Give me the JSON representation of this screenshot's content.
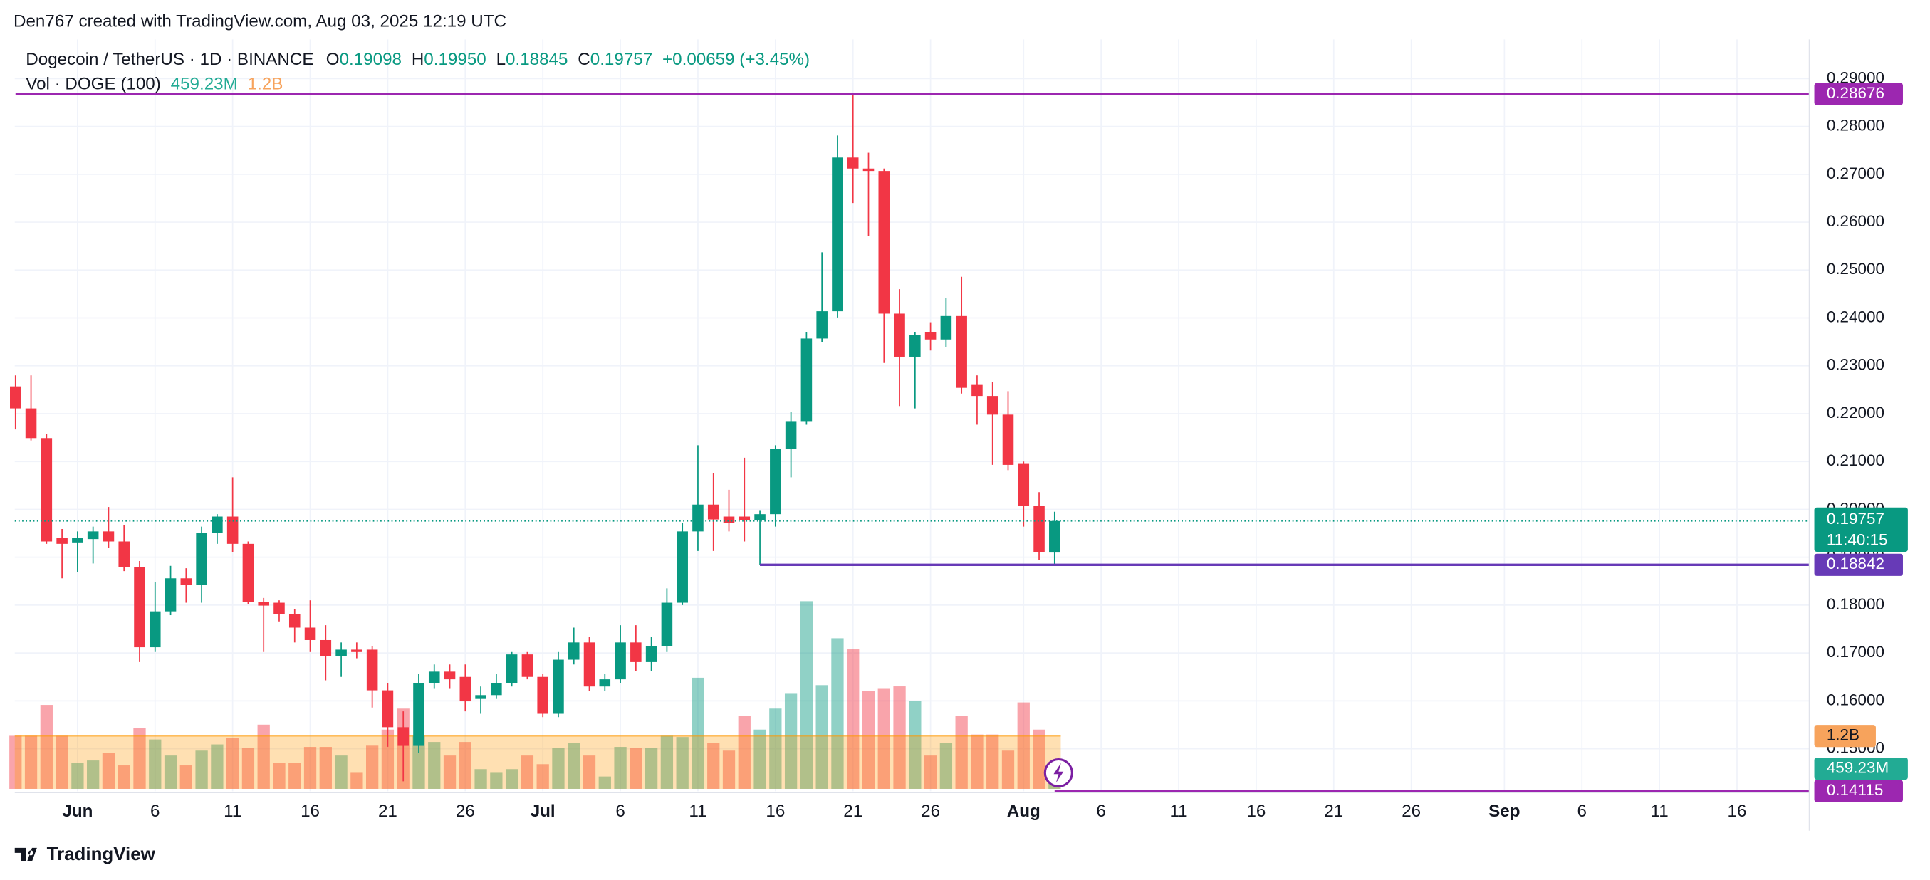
{
  "header": {
    "credit": "Den767 created with TradingView.com, Aug 03, 2025 12:19 UTC",
    "symbol": "Dogecoin / TetherUS · 1D · BINANCE",
    "ohlc": [
      {
        "key": "O",
        "value": "0.19098"
      },
      {
        "key": "H",
        "value": "0.19950"
      },
      {
        "key": "L",
        "value": "0.18845"
      },
      {
        "key": "C",
        "value": "0.19757"
      }
    ],
    "change": "+0.00659 (+3.45%)",
    "volume_legend": "Vol · DOGE (100)"
  },
  "chart_data": {
    "type": "candlestick",
    "x": [
      "2025-05-28",
      "2025-05-29",
      "2025-05-30",
      "2025-05-31",
      "2025-06-01",
      "2025-06-02",
      "2025-06-03",
      "2025-06-04",
      "2025-06-05",
      "2025-06-06",
      "2025-06-07",
      "2025-06-08",
      "2025-06-09",
      "2025-06-10",
      "2025-06-11",
      "2025-06-12",
      "2025-06-13",
      "2025-06-14",
      "2025-06-15",
      "2025-06-16",
      "2025-06-17",
      "2025-06-18",
      "2025-06-19",
      "2025-06-20",
      "2025-06-21",
      "2025-06-22",
      "2025-06-23",
      "2025-06-24",
      "2025-06-25",
      "2025-06-26",
      "2025-06-27",
      "2025-06-28",
      "2025-06-29",
      "2025-06-30",
      "2025-07-01",
      "2025-07-02",
      "2025-07-03",
      "2025-07-04",
      "2025-07-05",
      "2025-07-06",
      "2025-07-07",
      "2025-07-08",
      "2025-07-09",
      "2025-07-10",
      "2025-07-11",
      "2025-07-12",
      "2025-07-13",
      "2025-07-14",
      "2025-07-15",
      "2025-07-16",
      "2025-07-17",
      "2025-07-18",
      "2025-07-19",
      "2025-07-20",
      "2025-07-21",
      "2025-07-22",
      "2025-07-23",
      "2025-07-24",
      "2025-07-25",
      "2025-07-26",
      "2025-07-27",
      "2025-07-28",
      "2025-07-29",
      "2025-07-30",
      "2025-07-31",
      "2025-08-01",
      "2025-08-02",
      "2025-08-03"
    ],
    "open": [
      0.2257,
      0.2211,
      0.2149,
      0.1941,
      0.1931,
      0.1938,
      0.1954,
      0.1933,
      0.1879,
      0.1712,
      0.1787,
      0.1856,
      0.1843,
      0.1951,
      0.1985,
      0.1928,
      0.1807,
      0.1805,
      0.1781,
      0.1753,
      0.1727,
      0.1694,
      0.1707,
      0.1707,
      0.1622,
      0.1545,
      0.1506,
      0.1637,
      0.1661,
      0.165,
      0.1604,
      0.1612,
      0.1637,
      0.1697,
      0.165,
      0.1573,
      0.1686,
      0.1722,
      0.163,
      0.1645,
      0.1722,
      0.1681,
      0.1715,
      0.1805,
      0.1954,
      0.201,
      0.1985,
      0.1985,
      0.1977,
      0.199,
      0.2126,
      0.2183,
      0.2357,
      0.2414,
      0.2735,
      0.2712,
      0.2707,
      0.2409,
      0.2319,
      0.237,
      0.2355,
      0.2404,
      0.226,
      0.2237,
      0.2198,
      0.2095,
      0.2008,
      0.19098
    ],
    "high": [
      0.228,
      0.228,
      0.2157,
      0.1959,
      0.1954,
      0.1964,
      0.2005,
      0.1967,
      0.1892,
      0.1848,
      0.1882,
      0.1877,
      0.1964,
      0.199,
      0.2067,
      0.1933,
      0.1815,
      0.181,
      0.1792,
      0.181,
      0.1758,
      0.1722,
      0.1722,
      0.1715,
      0.1637,
      0.1578,
      0.1656,
      0.1676,
      0.1676,
      0.1676,
      0.163,
      0.1656,
      0.1702,
      0.1702,
      0.1656,
      0.1702,
      0.1753,
      0.1733,
      0.1656,
      0.1758,
      0.1758,
      0.1733,
      0.1835,
      0.1972,
      0.2134,
      0.2075,
      0.2041,
      0.2108,
      0.1997,
      0.2134,
      0.2203,
      0.237,
      0.2537,
      0.2781,
      0.28676,
      0.2745,
      0.2712,
      0.246,
      0.237,
      0.2391,
      0.2442,
      0.2486,
      0.228,
      0.2267,
      0.2247,
      0.21,
      0.2036,
      0.1995
    ],
    "low": [
      0.2167,
      0.2144,
      0.1928,
      0.1856,
      0.1869,
      0.1887,
      0.192,
      0.1871,
      0.1681,
      0.1702,
      0.1779,
      0.1805,
      0.1805,
      0.1928,
      0.191,
      0.1802,
      0.1702,
      0.1766,
      0.1722,
      0.1702,
      0.1643,
      0.165,
      0.1689,
      0.1586,
      0.1504,
      0.1432,
      0.1491,
      0.1625,
      0.1625,
      0.1578,
      0.1573,
      0.1604,
      0.163,
      0.1645,
      0.1566,
      0.1566,
      0.1676,
      0.162,
      0.162,
      0.1637,
      0.1663,
      0.1663,
      0.1702,
      0.18,
      0.1913,
      0.1913,
      0.1954,
      0.1933,
      0.18842,
      0.1964,
      0.2067,
      0.2177,
      0.235,
      0.2401,
      0.264,
      0.2571,
      0.2306,
      0.2216,
      0.2211,
      0.2332,
      0.2339,
      0.2242,
      0.2177,
      0.2093,
      0.2082,
      0.1964,
      0.1895,
      0.18845
    ],
    "close": [
      0.2211,
      0.2149,
      0.1933,
      0.1928,
      0.1941,
      0.1954,
      0.1933,
      0.1879,
      0.1712,
      0.1787,
      0.1856,
      0.1843,
      0.1951,
      0.1985,
      0.1928,
      0.1807,
      0.1799,
      0.1781,
      0.1753,
      0.1727,
      0.1694,
      0.1707,
      0.1702,
      0.1622,
      0.1545,
      0.1506,
      0.1637,
      0.1661,
      0.1645,
      0.1599,
      0.1612,
      0.1637,
      0.1697,
      0.165,
      0.1573,
      0.1686,
      0.1722,
      0.163,
      0.1645,
      0.1722,
      0.1681,
      0.1715,
      0.1805,
      0.1954,
      0.201,
      0.1979,
      0.1972,
      0.1977,
      0.199,
      0.2126,
      0.2183,
      0.2357,
      0.2414,
      0.2735,
      0.2712,
      0.2707,
      0.2409,
      0.2319,
      0.2365,
      0.2355,
      0.2404,
      0.2254,
      0.2237,
      0.2198,
      0.2093,
      0.2008,
      0.191,
      0.19757
    ],
    "volume": [
      1204000000,
      1204000000,
      1904000000,
      1204000000,
      588000000,
      644000000,
      812000000,
      532000000,
      1372000000,
      1120000000,
      756000000,
      532000000,
      868000000,
      1008000000,
      1148000000,
      924000000,
      1456000000,
      588000000,
      588000000,
      952000000,
      952000000,
      756000000,
      364000000,
      980000000,
      1344000000,
      1820000000,
      1204000000,
      1064000000,
      756000000,
      1064000000,
      448000000,
      364000000,
      448000000,
      756000000,
      560000000,
      924000000,
      1036000000,
      756000000,
      280000000,
      952000000,
      924000000,
      924000000,
      1204000000,
      1176000000,
      2520000000,
      1036000000,
      868000000,
      1652000000,
      1344000000,
      1820000000,
      2156000000,
      4256000000,
      2352000000,
      3416000000,
      3164000000,
      2212000000,
      2268000000,
      2324000000,
      1988000000,
      756000000,
      1036000000,
      1652000000,
      1232000000,
      1232000000,
      868000000,
      1960000000,
      1344000000,
      459230000
    ],
    "volume_label": "459.23M",
    "volume_ma": {
      "value": 1200000000,
      "label": "1.2B"
    },
    "ylim": [
      0.1411,
      0.2974
    ],
    "yticks": [
      {
        "value": 0.15,
        "label": "0.15000"
      },
      {
        "value": 0.16,
        "label": "0.16000"
      },
      {
        "value": 0.17,
        "label": "0.17000"
      },
      {
        "value": 0.18,
        "label": "0.18000"
      },
      {
        "value": 0.19,
        "label": "0.19000"
      },
      {
        "value": 0.2,
        "label": "0.20000"
      },
      {
        "value": 0.21,
        "label": "0.21000"
      },
      {
        "value": 0.22,
        "label": "0.22000"
      },
      {
        "value": 0.23,
        "label": "0.23000"
      },
      {
        "value": 0.24,
        "label": "0.24000"
      },
      {
        "value": 0.25,
        "label": "0.25000"
      },
      {
        "value": 0.26,
        "label": "0.26000"
      },
      {
        "value": 0.27,
        "label": "0.27000"
      },
      {
        "value": 0.28,
        "label": "0.28000"
      },
      {
        "value": 0.29,
        "label": "0.29000"
      }
    ],
    "xticks": [
      {
        "value": "2025-06-01",
        "label": "Jun"
      },
      {
        "value": "2025-06-06",
        "label": "6"
      },
      {
        "value": "2025-06-11",
        "label": "11"
      },
      {
        "value": "2025-06-16",
        "label": "16"
      },
      {
        "value": "2025-06-21",
        "label": "21"
      },
      {
        "value": "2025-06-26",
        "label": "26"
      },
      {
        "value": "2025-07-01",
        "label": "Jul"
      },
      {
        "value": "2025-07-06",
        "label": "6"
      },
      {
        "value": "2025-07-11",
        "label": "11"
      },
      {
        "value": "2025-07-16",
        "label": "16"
      },
      {
        "value": "2025-07-21",
        "label": "21"
      },
      {
        "value": "2025-07-26",
        "label": "26"
      },
      {
        "value": "2025-08-01",
        "label": "Aug"
      },
      {
        "value": "2025-08-06",
        "label": "6"
      },
      {
        "value": "2025-08-11",
        "label": "11"
      },
      {
        "value": "2025-08-16",
        "label": "16"
      },
      {
        "value": "2025-08-21",
        "label": "21"
      },
      {
        "value": "2025-08-26",
        "label": "26"
      },
      {
        "value": "2025-09-01",
        "label": "Sep"
      },
      {
        "value": "2025-09-06",
        "label": "6"
      },
      {
        "value": "2025-09-11",
        "label": "11"
      },
      {
        "value": "2025-09-16",
        "label": "16"
      }
    ],
    "hlines": [
      {
        "value": 0.14115,
        "label": "0.14115",
        "start": "2025-08-03",
        "color": "#9c27b0"
      },
      {
        "value": 0.28676,
        "label": "0.28676",
        "start": "2025-05-28",
        "color": "#9c27b0"
      },
      {
        "value": 0.18842,
        "label": "0.18842",
        "start": "2025-07-15",
        "color": "#673ab7"
      }
    ],
    "last_price": {
      "value": 0.19757,
      "label": "0.19757",
      "countdown": "11:40:15"
    },
    "colors": {
      "up": "#089981",
      "down": "#f23645",
      "volume_ma": "#ff9800"
    },
    "grid": true
  },
  "footer": {
    "brand": "TradingView"
  }
}
